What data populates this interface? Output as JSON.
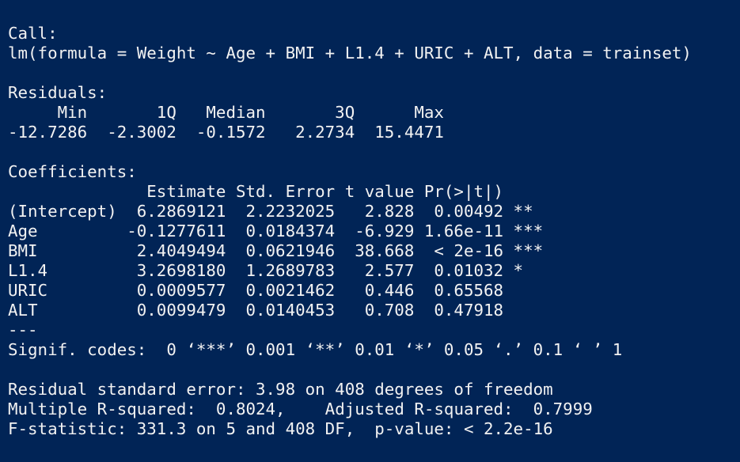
{
  "console": {
    "lines": [
      "Call:",
      "lm(formula = Weight ~ Age + BMI + L1.4 + URIC + ALT, data = trainset)",
      "",
      "Residuals:",
      "     Min       1Q   Median       3Q      Max ",
      "-12.7286  -2.3002  -0.1572   2.2734  15.4471 ",
      "",
      "Coefficients:",
      "              Estimate Std. Error t value Pr(>|t|)    ",
      "(Intercept)  6.2869121  2.2232025   2.828  0.00492 ** ",
      "Age         -0.1277611  0.0184374  -6.929 1.66e-11 ***",
      "BMI          2.4049494  0.0621946  38.668  < 2e-16 ***",
      "L1.4         3.2698180  1.2689783   2.577  0.01032 *  ",
      "URIC         0.0009577  0.0021462   0.446  0.65568    ",
      "ALT          0.0099479  0.0140453   0.708  0.47918    ",
      "---",
      "Signif. codes:  0 ‘***’ 0.001 ‘**’ 0.01 ‘*’ 0.05 ‘.’ 0.1 ‘ ’ 1",
      "",
      "Residual standard error: 3.98 on 408 degrees of freedom",
      "Multiple R-squared:  0.8024,\tAdjusted R-squared:  0.7999 ",
      "F-statistic: 331.3 on 5 and 408 DF,  p-value: < 2.2e-16"
    ]
  },
  "colors": {
    "background": "#012456",
    "text": "#f2f2f2"
  }
}
